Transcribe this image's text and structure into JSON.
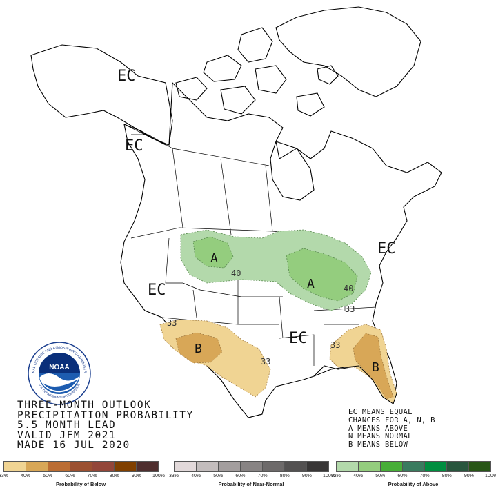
{
  "title_lines": [
    "THREE-MONTH OUTLOOK",
    "PRECIPITATION PROBABILITY",
    "5.5 MONTH LEAD",
    "VALID JFM 2021",
    "MADE 16 JUL 2020"
  ],
  "legend_notes": [
    "EC MEANS EQUAL",
    "CHANCES FOR A, N, B",
    "A MEANS ABOVE",
    "N MEANS NORMAL",
    "B MEANS BELOW"
  ],
  "map_labels": {
    "ec_alaska": "EC",
    "ec_bc": "EC",
    "ec_west": "EC",
    "ec_south": "EC",
    "ec_northeast": "EC",
    "a_plains": "A",
    "a_lakes": "A",
    "b_southwest": "B",
    "b_florida": "B",
    "c40_plains": "40",
    "c40_lakes": "40",
    "c33_lakes": "33",
    "c33_sw_left": "33",
    "c33_sw_right": "33",
    "c33_se": "33"
  },
  "logo": {
    "text": "NOAA",
    "ring_text": "NATIONAL OCEANIC AND ATMOSPHERIC ADMINISTRATION",
    "ring_text_bottom": "U.S. DEPARTMENT OF COMMERCE"
  },
  "legends": {
    "below": {
      "title": "Probability of Below",
      "ticks": [
        "33%",
        "40%",
        "50%",
        "60%",
        "70%",
        "80%",
        "90%",
        "100%"
      ],
      "colors": [
        "#f0d493",
        "#d8a757",
        "#bb6d33",
        "#9b5031",
        "#934639",
        "#804000",
        "#4f2f2f"
      ]
    },
    "normal": {
      "title": "Probability of Near-Normal",
      "ticks": [
        "33%",
        "40%",
        "50%",
        "60%",
        "70%",
        "80%",
        "90%",
        "100%"
      ],
      "colors": [
        "#e2d9da",
        "#c3bdbd",
        "#a39e9e",
        "#888484",
        "#6d6a6a",
        "#535151",
        "#383636"
      ]
    },
    "above": {
      "title": "Probability of Above",
      "ticks": [
        "33%",
        "40%",
        "50%",
        "60%",
        "70%",
        "80%",
        "90%",
        "100%"
      ],
      "colors": [
        "#b3d9ab",
        "#94cd7e",
        "#48ae38",
        "#3a7b5f",
        "#008e40",
        "#28553d",
        "#285517"
      ]
    }
  },
  "colors": {
    "above_33": "#b3d9ab",
    "above_40": "#94cd7e",
    "below_33": "#f0d493",
    "below_40": "#d8a757"
  }
}
